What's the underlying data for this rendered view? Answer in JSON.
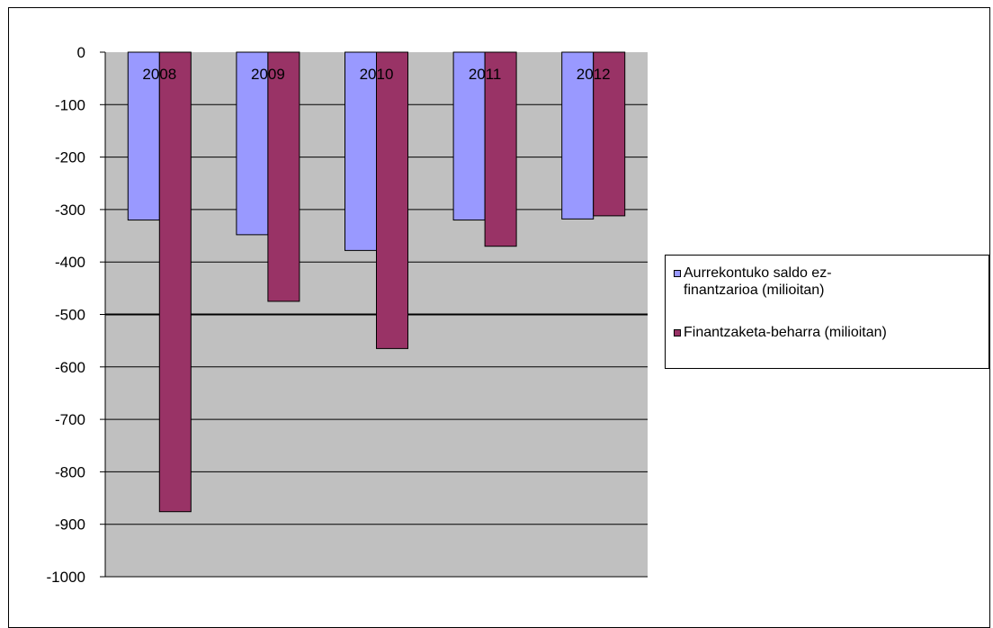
{
  "chart_data": {
    "type": "bar",
    "categories": [
      "2008",
      "2009",
      "2010",
      "2011",
      "2012"
    ],
    "series": [
      {
        "name": "Aurrekontuko saldo ez-finantzarioa (milioitan)",
        "color": "#9999ff",
        "values": [
          -320,
          -348,
          -378,
          -320,
          -318
        ]
      },
      {
        "name": "Finantzaketa-beharra (milioitan)",
        "color": "#993366",
        "values": [
          -876,
          -475,
          -565,
          -370,
          -312
        ]
      }
    ],
    "ylim": [
      -1000,
      0
    ],
    "yticks": [
      0,
      -100,
      -200,
      -300,
      -400,
      -500,
      -600,
      -700,
      -800,
      -900,
      -1000
    ],
    "ytick_labels": [
      "0",
      "-100",
      "-200",
      "-300",
      "-400",
      "-500",
      "-600",
      "-700",
      "-800",
      "-900",
      "-1000"
    ],
    "category_label_position": "top",
    "grid": true,
    "plot_background": "#c0c0c0",
    "legend_position": "right",
    "legend_lines": [
      [
        "Aurrekontuko saldo ez-",
        "finantzarioa (milioitan)"
      ],
      [
        "Finantzaketa-beharra (milioitan)"
      ]
    ]
  }
}
